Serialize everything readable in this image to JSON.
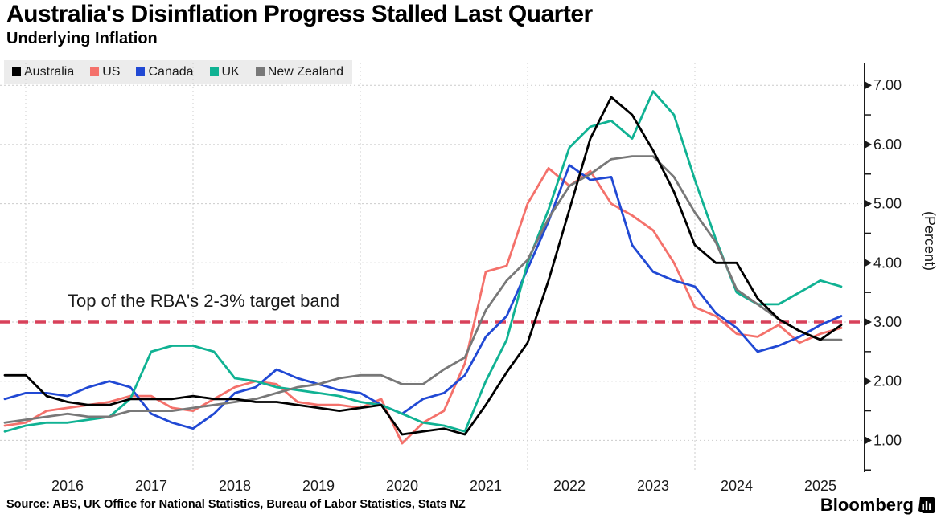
{
  "title": "Australia's Disinflation Progress Stalled Last Quarter",
  "subtitle": "Underlying Inflation",
  "legend": {
    "items": [
      {
        "label": "Australia",
        "color": "#000000"
      },
      {
        "label": "US",
        "color": "#f4716b"
      },
      {
        "label": "Canada",
        "color": "#2149d4"
      },
      {
        "label": "UK",
        "color": "#10b293"
      },
      {
        "label": "New Zealand",
        "color": "#787878"
      }
    ]
  },
  "annotation": {
    "text": "Top of the RBA's 2-3% target band"
  },
  "target_line": {
    "value": 3.0,
    "color": "#d8415a",
    "label": "Top of the RBA's 2-3% target band"
  },
  "axes": {
    "y_label": "(Percent)",
    "y_ticks": [
      "1.00",
      "2.00",
      "3.00",
      "4.00",
      "5.00",
      "6.00",
      "7.00"
    ],
    "x_ticks": [
      "2016",
      "2017",
      "2018",
      "2019",
      "2020",
      "2021",
      "2022",
      "2023",
      "2024",
      "2025"
    ]
  },
  "source": "Source: ABS, UK Office for National Statistics, Bureau of Labor Statistics, Stats NZ",
  "brand": "Bloomberg",
  "chart_data": {
    "type": "line",
    "title": "Underlying Inflation",
    "ylabel": "(Percent)",
    "ylim": [
      0.5,
      7.4
    ],
    "xlim": [
      2015.6,
      2026.0
    ],
    "grid": true,
    "grid_years": [
      2016,
      2018,
      2020,
      2022,
      2024
    ],
    "legend_position": "top-left",
    "x_start": 2015.75,
    "x_step": 0.25,
    "target_band_top": 3.0,
    "series": [
      {
        "name": "US",
        "color": "#f4716b",
        "values": [
          1.25,
          1.3,
          1.5,
          1.55,
          1.6,
          1.65,
          1.75,
          1.75,
          1.55,
          1.5,
          1.7,
          1.9,
          2.0,
          1.95,
          1.65,
          1.6,
          1.6,
          1.55,
          1.7,
          0.95,
          1.3,
          1.5,
          2.3,
          3.85,
          3.95,
          5.0,
          5.6,
          5.3,
          5.55,
          5.0,
          4.8,
          4.55,
          4.0,
          3.25,
          3.1,
          2.8,
          2.75,
          2.95,
          2.65,
          2.8,
          2.9
        ]
      },
      {
        "name": "Canada",
        "color": "#2149d4",
        "values": [
          1.7,
          1.8,
          1.8,
          1.75,
          1.9,
          2.0,
          1.9,
          1.45,
          1.3,
          1.2,
          1.45,
          1.8,
          1.9,
          2.2,
          2.05,
          1.95,
          1.85,
          1.8,
          1.6,
          1.45,
          1.7,
          1.8,
          2.1,
          2.75,
          3.1,
          3.9,
          4.7,
          5.65,
          5.4,
          5.45,
          4.3,
          3.85,
          3.7,
          3.6,
          3.15,
          2.9,
          2.5,
          2.6,
          2.75,
          2.95,
          3.1
        ]
      },
      {
        "name": "UK",
        "color": "#10b293",
        "values": [
          1.15,
          1.25,
          1.3,
          1.3,
          1.35,
          1.4,
          1.7,
          2.5,
          2.6,
          2.6,
          2.5,
          2.05,
          2.0,
          1.9,
          1.85,
          1.8,
          1.75,
          1.65,
          1.6,
          1.45,
          1.3,
          1.25,
          1.15,
          2.0,
          2.7,
          4.0,
          4.9,
          5.95,
          6.3,
          6.4,
          6.1,
          6.9,
          6.5,
          5.4,
          4.4,
          3.5,
          3.3,
          3.3,
          3.5,
          3.7,
          3.6
        ]
      },
      {
        "name": "New Zealand",
        "color": "#787878",
        "values": [
          1.3,
          1.35,
          1.4,
          1.45,
          1.4,
          1.4,
          1.5,
          1.5,
          1.5,
          1.55,
          1.6,
          1.65,
          1.7,
          1.8,
          1.9,
          1.95,
          2.05,
          2.1,
          2.1,
          1.95,
          1.95,
          2.2,
          2.4,
          3.2,
          3.7,
          4.05,
          4.75,
          5.3,
          5.5,
          5.75,
          5.8,
          5.8,
          5.45,
          4.85,
          4.35,
          3.55,
          3.3,
          3.05,
          2.85,
          2.7,
          2.7
        ]
      },
      {
        "name": "Australia",
        "color": "#000000",
        "values": [
          2.1,
          2.1,
          1.75,
          1.65,
          1.6,
          1.6,
          1.7,
          1.7,
          1.7,
          1.75,
          1.7,
          1.7,
          1.65,
          1.65,
          1.6,
          1.55,
          1.5,
          1.55,
          1.6,
          1.1,
          1.15,
          1.2,
          1.1,
          1.6,
          2.15,
          2.65,
          3.7,
          4.9,
          6.1,
          6.8,
          6.5,
          5.9,
          5.2,
          4.3,
          4.0,
          4.0,
          3.4,
          3.05,
          2.85,
          2.7,
          2.95
        ]
      }
    ]
  }
}
